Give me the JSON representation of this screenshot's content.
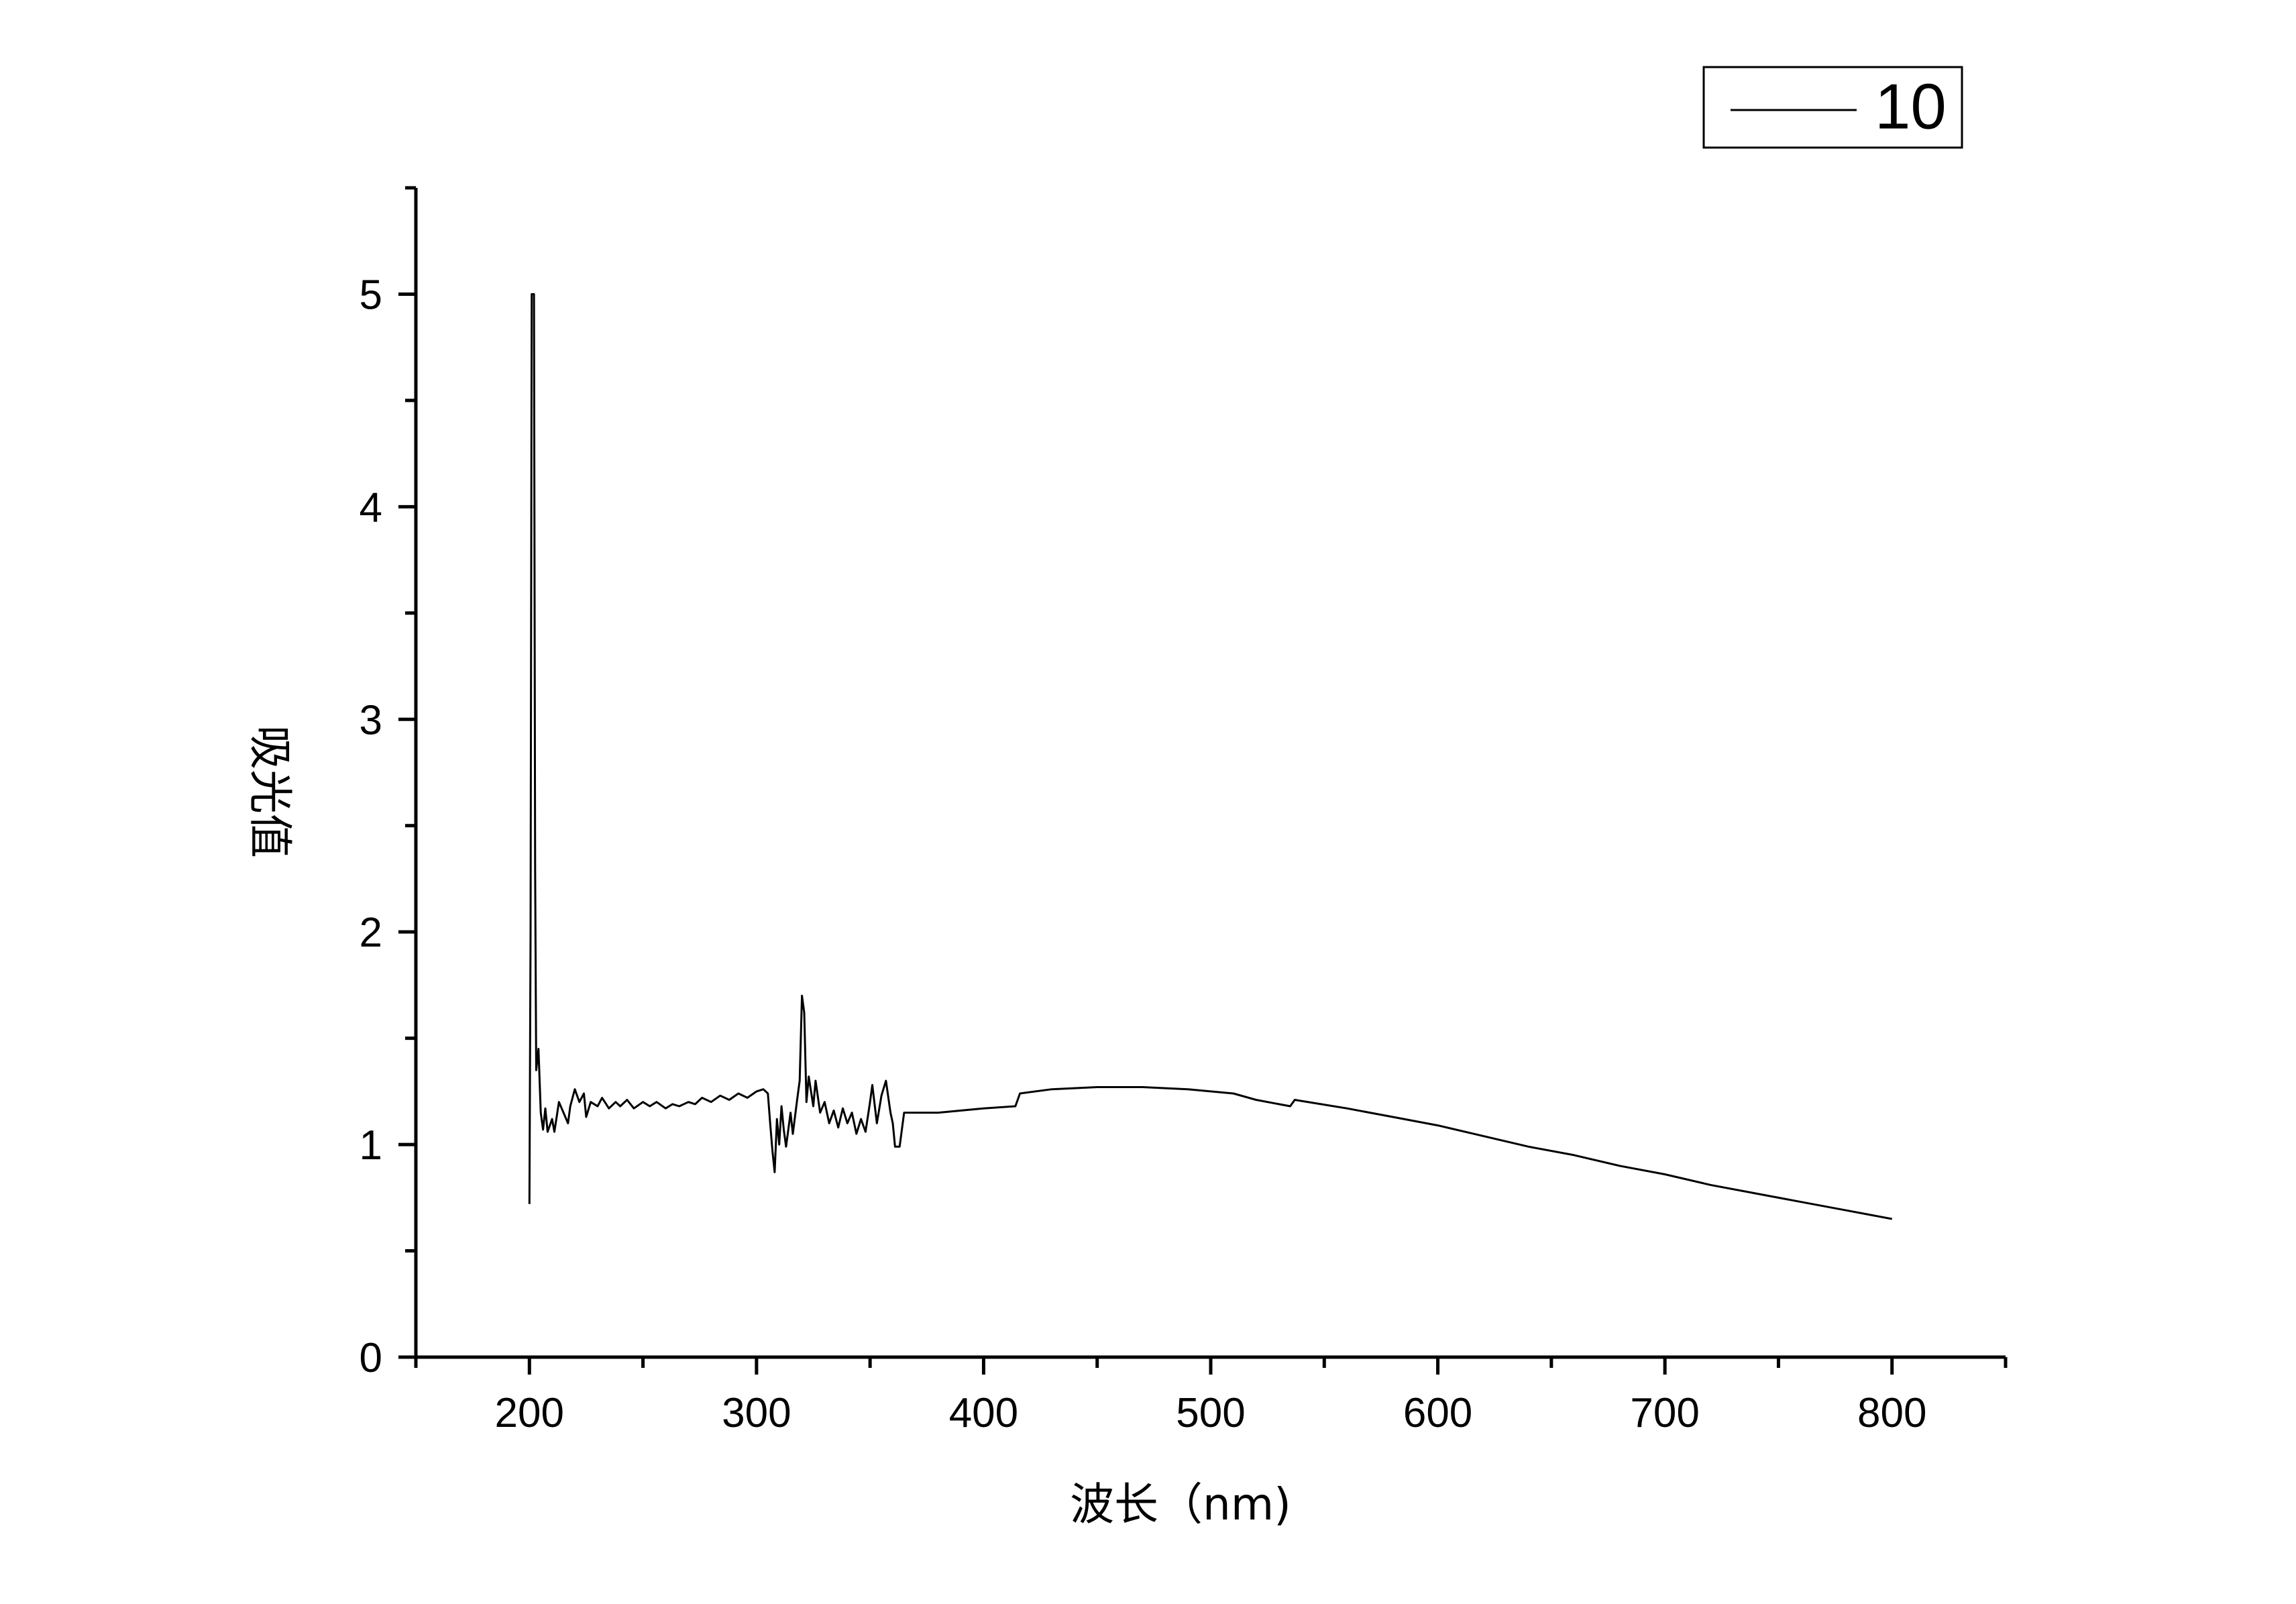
{
  "chart_data": {
    "type": "line",
    "xlabel": "波长（nm)",
    "ylabel": "吸光值",
    "xlim": [
      150,
      850
    ],
    "ylim": [
      0,
      5.5
    ],
    "x_ticks": [
      200,
      300,
      400,
      500,
      600,
      700,
      800
    ],
    "y_ticks": [
      0,
      1,
      2,
      3,
      4,
      5
    ],
    "grid": false,
    "legend": "top-right",
    "series": [
      {
        "name": "10",
        "color": "#000000",
        "points": [
          [
            200,
            0.72
          ],
          [
            200.5,
            2.0
          ],
          [
            201,
            5.0
          ],
          [
            202,
            5.0
          ],
          [
            202.5,
            2.3
          ],
          [
            203,
            1.35
          ],
          [
            204,
            1.45
          ],
          [
            205,
            1.15
          ],
          [
            206,
            1.07
          ],
          [
            207,
            1.17
          ],
          [
            208,
            1.06
          ],
          [
            210,
            1.12
          ],
          [
            211,
            1.06
          ],
          [
            213,
            1.2
          ],
          [
            215,
            1.15
          ],
          [
            217,
            1.1
          ],
          [
            218,
            1.18
          ],
          [
            220,
            1.26
          ],
          [
            222,
            1.2
          ],
          [
            224,
            1.24
          ],
          [
            225,
            1.13
          ],
          [
            227,
            1.2
          ],
          [
            230,
            1.18
          ],
          [
            232,
            1.22
          ],
          [
            235,
            1.17
          ],
          [
            238,
            1.2
          ],
          [
            240,
            1.18
          ],
          [
            243,
            1.21
          ],
          [
            246,
            1.17
          ],
          [
            250,
            1.2
          ],
          [
            253,
            1.18
          ],
          [
            256,
            1.2
          ],
          [
            260,
            1.17
          ],
          [
            263,
            1.19
          ],
          [
            266,
            1.18
          ],
          [
            270,
            1.2
          ],
          [
            273,
            1.19
          ],
          [
            276,
            1.22
          ],
          [
            280,
            1.2
          ],
          [
            284,
            1.23
          ],
          [
            288,
            1.21
          ],
          [
            292,
            1.24
          ],
          [
            296,
            1.22
          ],
          [
            300,
            1.25
          ],
          [
            303,
            1.26
          ],
          [
            305,
            1.24
          ],
          [
            306,
            1.1
          ],
          [
            307,
            0.97
          ],
          [
            308,
            0.87
          ],
          [
            309,
            1.12
          ],
          [
            310,
            1.0
          ],
          [
            311,
            1.18
          ],
          [
            312,
            1.07
          ],
          [
            313,
            0.99
          ],
          [
            315,
            1.15
          ],
          [
            316,
            1.05
          ],
          [
            318,
            1.22
          ],
          [
            319,
            1.3
          ],
          [
            320,
            1.7
          ],
          [
            321,
            1.62
          ],
          [
            322,
            1.2
          ],
          [
            323,
            1.32
          ],
          [
            325,
            1.18
          ],
          [
            326,
            1.3
          ],
          [
            328,
            1.15
          ],
          [
            330,
            1.2
          ],
          [
            332,
            1.1
          ],
          [
            334,
            1.16
          ],
          [
            336,
            1.08
          ],
          [
            338,
            1.17
          ],
          [
            340,
            1.1
          ],
          [
            342,
            1.15
          ],
          [
            344,
            1.05
          ],
          [
            346,
            1.12
          ],
          [
            348,
            1.06
          ],
          [
            350,
            1.2
          ],
          [
            351,
            1.28
          ],
          [
            353,
            1.1
          ],
          [
            355,
            1.23
          ],
          [
            357,
            1.3
          ],
          [
            359,
            1.15
          ],
          [
            360,
            1.1
          ],
          [
            361,
            0.99
          ],
          [
            363,
            0.99
          ],
          [
            365,
            1.15
          ],
          [
            380,
            1.15
          ],
          [
            400,
            1.17
          ],
          [
            414,
            1.18
          ],
          [
            416,
            1.24
          ],
          [
            430,
            1.26
          ],
          [
            450,
            1.27
          ],
          [
            470,
            1.27
          ],
          [
            490,
            1.26
          ],
          [
            510,
            1.24
          ],
          [
            520,
            1.21
          ],
          [
            535,
            1.18
          ],
          [
            537,
            1.21
          ],
          [
            560,
            1.17
          ],
          [
            580,
            1.13
          ],
          [
            600,
            1.09
          ],
          [
            620,
            1.04
          ],
          [
            640,
            0.99
          ],
          [
            660,
            0.95
          ],
          [
            680,
            0.9
          ],
          [
            700,
            0.86
          ],
          [
            720,
            0.81
          ],
          [
            740,
            0.77
          ],
          [
            760,
            0.73
          ],
          [
            780,
            0.69
          ],
          [
            800,
            0.65
          ]
        ]
      }
    ]
  }
}
